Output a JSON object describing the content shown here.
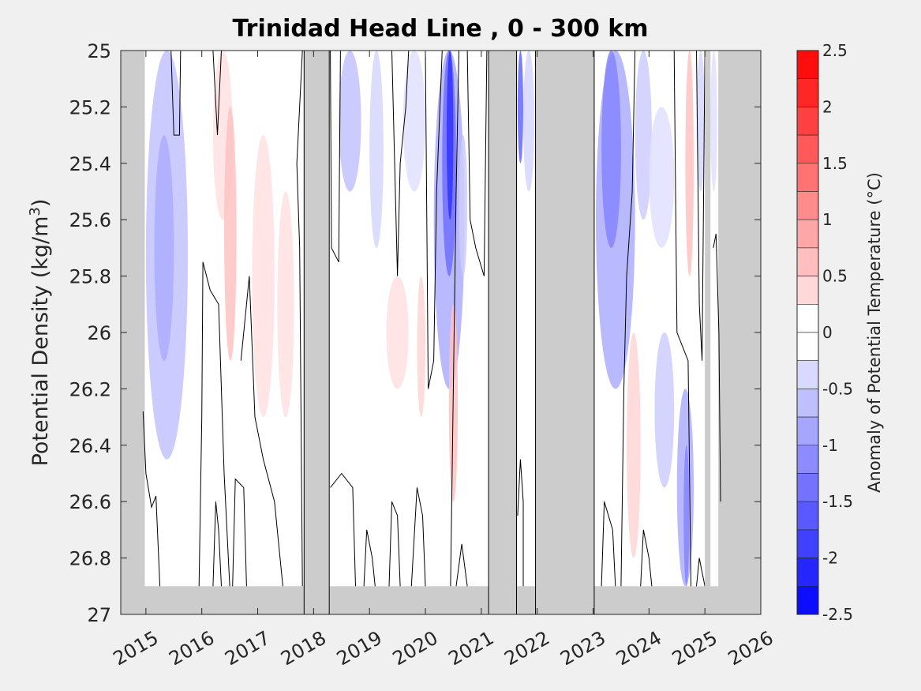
{
  "chart_data": {
    "type": "heatmap",
    "title": "Trinidad Head Line , 0 - 300 km",
    "ylabel_text": "Potential Density (kg/m",
    "ylabel_sup": "3",
    "ylabel_close": ")",
    "xlim": [
      2014.55,
      2026.0
    ],
    "ylim": [
      25.0,
      27.0
    ],
    "y_reversed": true,
    "x_ticks": [
      "2015",
      "2016",
      "2017",
      "2018",
      "2019",
      "2020",
      "2021",
      "2022",
      "2023",
      "2024",
      "2025",
      "2026"
    ],
    "y_ticks": [
      "25",
      "25.2",
      "25.4",
      "25.6",
      "25.8",
      "26",
      "26.2",
      "26.4",
      "26.6",
      "26.8",
      "27"
    ],
    "colorbar": {
      "label": "Anomaly of Potential Temperature (°C)",
      "range": [
        -2.5,
        2.5
      ],
      "step": 0.25,
      "ticks": [
        "2.5",
        "2",
        "1.5",
        "1",
        "0.5",
        "0",
        "-0.5",
        "-1",
        "-1.5",
        "-2",
        "-2.5"
      ],
      "white_band": [
        -0.25,
        0.25
      ],
      "positive_color": "#ff0000",
      "negative_color": "#0000ff"
    },
    "data_coverage": {
      "x_range": [
        2014.98,
        2025.24
      ],
      "max_density": 26.9,
      "no_data_color": "#cccccc",
      "gaps": [
        [
          2017.83,
          2018.28
        ],
        [
          2021.13,
          2021.63
        ],
        [
          2021.97,
          2023.02
        ]
      ],
      "thin_gaps": [
        [
          2025.0,
          2025.1
        ]
      ]
    },
    "anomaly_features": [
      {
        "x": [
          2015.0,
          2015.75
        ],
        "y": [
          25.0,
          26.45
        ],
        "value": -0.6
      },
      {
        "x": [
          2015.15,
          2015.5
        ],
        "y": [
          25.3,
          26.1
        ],
        "value": -0.8
      },
      {
        "x": [
          2016.2,
          2016.55
        ],
        "y": [
          25.0,
          25.6
        ],
        "value": 0.3
      },
      {
        "x": [
          2016.4,
          2016.62
        ],
        "y": [
          25.2,
          26.1
        ],
        "value": 0.6
      },
      {
        "x": [
          2016.9,
          2017.3
        ],
        "y": [
          25.3,
          26.3
        ],
        "value": 0.3
      },
      {
        "x": [
          2017.35,
          2017.65
        ],
        "y": [
          25.5,
          26.3
        ],
        "value": 0.3
      },
      {
        "x": [
          2018.45,
          2018.85
        ],
        "y": [
          25.0,
          25.5
        ],
        "value": -0.6
      },
      {
        "x": [
          2019.0,
          2019.25
        ],
        "y": [
          25.0,
          25.7
        ],
        "value": -0.4
      },
      {
        "x": [
          2019.3,
          2019.7
        ],
        "y": [
          25.8,
          26.2
        ],
        "value": 0.3
      },
      {
        "x": [
          2019.6,
          2020.0
        ],
        "y": [
          25.0,
          25.5
        ],
        "value": -0.3
      },
      {
        "x": [
          2019.85,
          2020.0
        ],
        "y": [
          25.8,
          26.3
        ],
        "value": 0.4
      },
      {
        "x": [
          2020.15,
          2020.7
        ],
        "y": [
          25.0,
          26.2
        ],
        "value": -0.8
      },
      {
        "x": [
          2020.3,
          2020.55
        ],
        "y": [
          25.0,
          25.8
        ],
        "value": -1.4
      },
      {
        "x": [
          2020.38,
          2020.5
        ],
        "y": [
          25.0,
          25.6
        ],
        "value": -2.0
      },
      {
        "x": [
          2020.42,
          2020.58
        ],
        "y": [
          25.9,
          26.6
        ],
        "value": 0.6
      },
      {
        "x": [
          2020.6,
          2020.75
        ],
        "y": [
          25.3,
          25.8
        ],
        "value": -0.5
      },
      {
        "x": [
          2021.65,
          2021.75
        ],
        "y": [
          25.0,
          25.4
        ],
        "value": -1.5
      },
      {
        "x": [
          2021.75,
          2021.95
        ],
        "y": [
          25.0,
          25.5
        ],
        "value": -0.4
      },
      {
        "x": [
          2023.05,
          2023.75
        ],
        "y": [
          25.0,
          26.2
        ],
        "value": -0.8
      },
      {
        "x": [
          2023.15,
          2023.5
        ],
        "y": [
          25.0,
          25.7
        ],
        "value": -1.2
      },
      {
        "x": [
          2023.6,
          2023.85
        ],
        "y": [
          26.0,
          26.8
        ],
        "value": 0.4
      },
      {
        "x": [
          2023.75,
          2024.05
        ],
        "y": [
          25.0,
          25.6
        ],
        "value": -0.5
      },
      {
        "x": [
          2024.0,
          2024.45
        ],
        "y": [
          25.2,
          25.7
        ],
        "value": -0.3
      },
      {
        "x": [
          2024.1,
          2024.45
        ],
        "y": [
          26.0,
          26.55
        ],
        "value": -0.5
      },
      {
        "x": [
          2024.5,
          2024.8
        ],
        "y": [
          26.2,
          26.9
        ],
        "value": -0.8
      },
      {
        "x": [
          2024.62,
          2024.72
        ],
        "y": [
          26.4,
          26.9
        ],
        "value": -1.2
      },
      {
        "x": [
          2024.65,
          2024.8
        ],
        "y": [
          25.0,
          25.8
        ],
        "value": 0.6
      },
      {
        "x": [
          2024.85,
          2025.0
        ],
        "y": [
          25.0,
          25.5
        ],
        "value": -0.4
      },
      {
        "x": [
          2025.1,
          2025.22
        ],
        "y": [
          25.0,
          25.5
        ],
        "value": -0.3
      }
    ],
    "zero_contours": [
      [
        [
          2014.95,
          26.28
        ],
        [
          2015.0,
          26.5
        ],
        [
          2015.1,
          26.62
        ],
        [
          2015.18,
          26.58
        ],
        [
          2015.25,
          26.9
        ]
      ],
      [
        [
          2015.45,
          25.0
        ],
        [
          2015.5,
          25.3
        ],
        [
          2015.6,
          25.3
        ],
        [
          2015.62,
          25.0
        ]
      ],
      [
        [
          2015.95,
          26.9
        ],
        [
          2016.0,
          26.3
        ],
        [
          2016.02,
          25.75
        ],
        [
          2016.15,
          25.85
        ],
        [
          2016.3,
          25.9
        ],
        [
          2016.4,
          26.5
        ],
        [
          2016.5,
          26.9
        ]
      ],
      [
        [
          2016.2,
          26.9
        ],
        [
          2016.25,
          26.6
        ],
        [
          2016.3,
          26.7
        ],
        [
          2016.35,
          26.9
        ]
      ],
      [
        [
          2016.55,
          26.9
        ],
        [
          2016.6,
          26.52
        ],
        [
          2016.75,
          26.55
        ],
        [
          2016.8,
          26.9
        ]
      ],
      [
        [
          2016.7,
          26.1
        ],
        [
          2016.85,
          25.8
        ],
        [
          2016.95,
          26.3
        ],
        [
          2017.1,
          26.45
        ],
        [
          2017.3,
          26.6
        ],
        [
          2017.45,
          26.9
        ]
      ],
      [
        [
          2016.2,
          25.0
        ],
        [
          2016.28,
          25.3
        ],
        [
          2016.35,
          25.0
        ]
      ],
      [
        [
          2017.8,
          25.0
        ],
        [
          2017.7,
          25.4
        ],
        [
          2017.75,
          25.7
        ],
        [
          2017.8,
          26.9
        ]
      ],
      [
        [
          2018.3,
          26.55
        ],
        [
          2018.5,
          26.5
        ],
        [
          2018.7,
          26.55
        ],
        [
          2018.75,
          26.9
        ]
      ],
      [
        [
          2018.9,
          26.9
        ],
        [
          2018.95,
          26.7
        ],
        [
          2019.05,
          26.8
        ],
        [
          2019.1,
          26.9
        ]
      ],
      [
        [
          2019.35,
          26.9
        ],
        [
          2019.4,
          26.6
        ],
        [
          2019.5,
          26.65
        ],
        [
          2019.55,
          26.9
        ]
      ],
      [
        [
          2018.3,
          25.0
        ],
        [
          2018.32,
          25.7
        ],
        [
          2018.45,
          25.75
        ],
        [
          2018.48,
          25.0
        ]
      ],
      [
        [
          2019.4,
          25.0
        ],
        [
          2019.5,
          25.8
        ],
        [
          2019.55,
          25.4
        ],
        [
          2019.65,
          25.2
        ],
        [
          2019.7,
          25.0
        ]
      ],
      [
        [
          2019.75,
          26.9
        ],
        [
          2019.85,
          26.55
        ],
        [
          2019.95,
          26.65
        ],
        [
          2020.0,
          26.9
        ]
      ],
      [
        [
          2020.0,
          25.0
        ],
        [
          2020.05,
          26.2
        ],
        [
          2020.15,
          26.1
        ],
        [
          2020.2,
          25.5
        ],
        [
          2020.3,
          25.0
        ]
      ],
      [
        [
          2020.45,
          26.9
        ],
        [
          2020.5,
          26.2
        ],
        [
          2020.55,
          25.5
        ],
        [
          2020.6,
          25.0
        ]
      ],
      [
        [
          2020.55,
          26.9
        ],
        [
          2020.65,
          26.75
        ],
        [
          2020.75,
          26.9
        ]
      ],
      [
        [
          2020.75,
          25.0
        ],
        [
          2020.8,
          25.6
        ],
        [
          2020.9,
          25.7
        ],
        [
          2021.05,
          25.8
        ],
        [
          2021.1,
          25.0
        ]
      ],
      [
        [
          2021.65,
          26.65
        ],
        [
          2021.7,
          26.45
        ],
        [
          2021.75,
          26.6
        ],
        [
          2021.75,
          26.9
        ]
      ],
      [
        [
          2023.15,
          26.9
        ],
        [
          2023.2,
          26.6
        ],
        [
          2023.35,
          26.7
        ],
        [
          2023.4,
          26.9
        ]
      ],
      [
        [
          2023.5,
          26.9
        ],
        [
          2023.55,
          26.2
        ],
        [
          2023.6,
          25.8
        ],
        [
          2023.7,
          25.5
        ],
        [
          2023.75,
          25.0
        ]
      ],
      [
        [
          2023.85,
          26.9
        ],
        [
          2023.9,
          26.7
        ],
        [
          2024.0,
          26.8
        ],
        [
          2024.05,
          26.9
        ]
      ],
      [
        [
          2024.45,
          25.0
        ],
        [
          2024.5,
          26.0
        ],
        [
          2024.7,
          26.1
        ],
        [
          2024.75,
          26.9
        ]
      ],
      [
        [
          2024.85,
          25.0
        ],
        [
          2024.9,
          25.9
        ],
        [
          2024.95,
          26.1
        ],
        [
          2025.0,
          25.0
        ]
      ],
      [
        [
          2024.85,
          26.9
        ],
        [
          2024.9,
          26.8
        ],
        [
          2024.95,
          26.85
        ],
        [
          2025.0,
          26.9
        ]
      ],
      [
        [
          2025.15,
          25.7
        ],
        [
          2025.2,
          25.65
        ],
        [
          2025.25,
          26.0
        ],
        [
          2025.28,
          26.6
        ]
      ]
    ]
  }
}
